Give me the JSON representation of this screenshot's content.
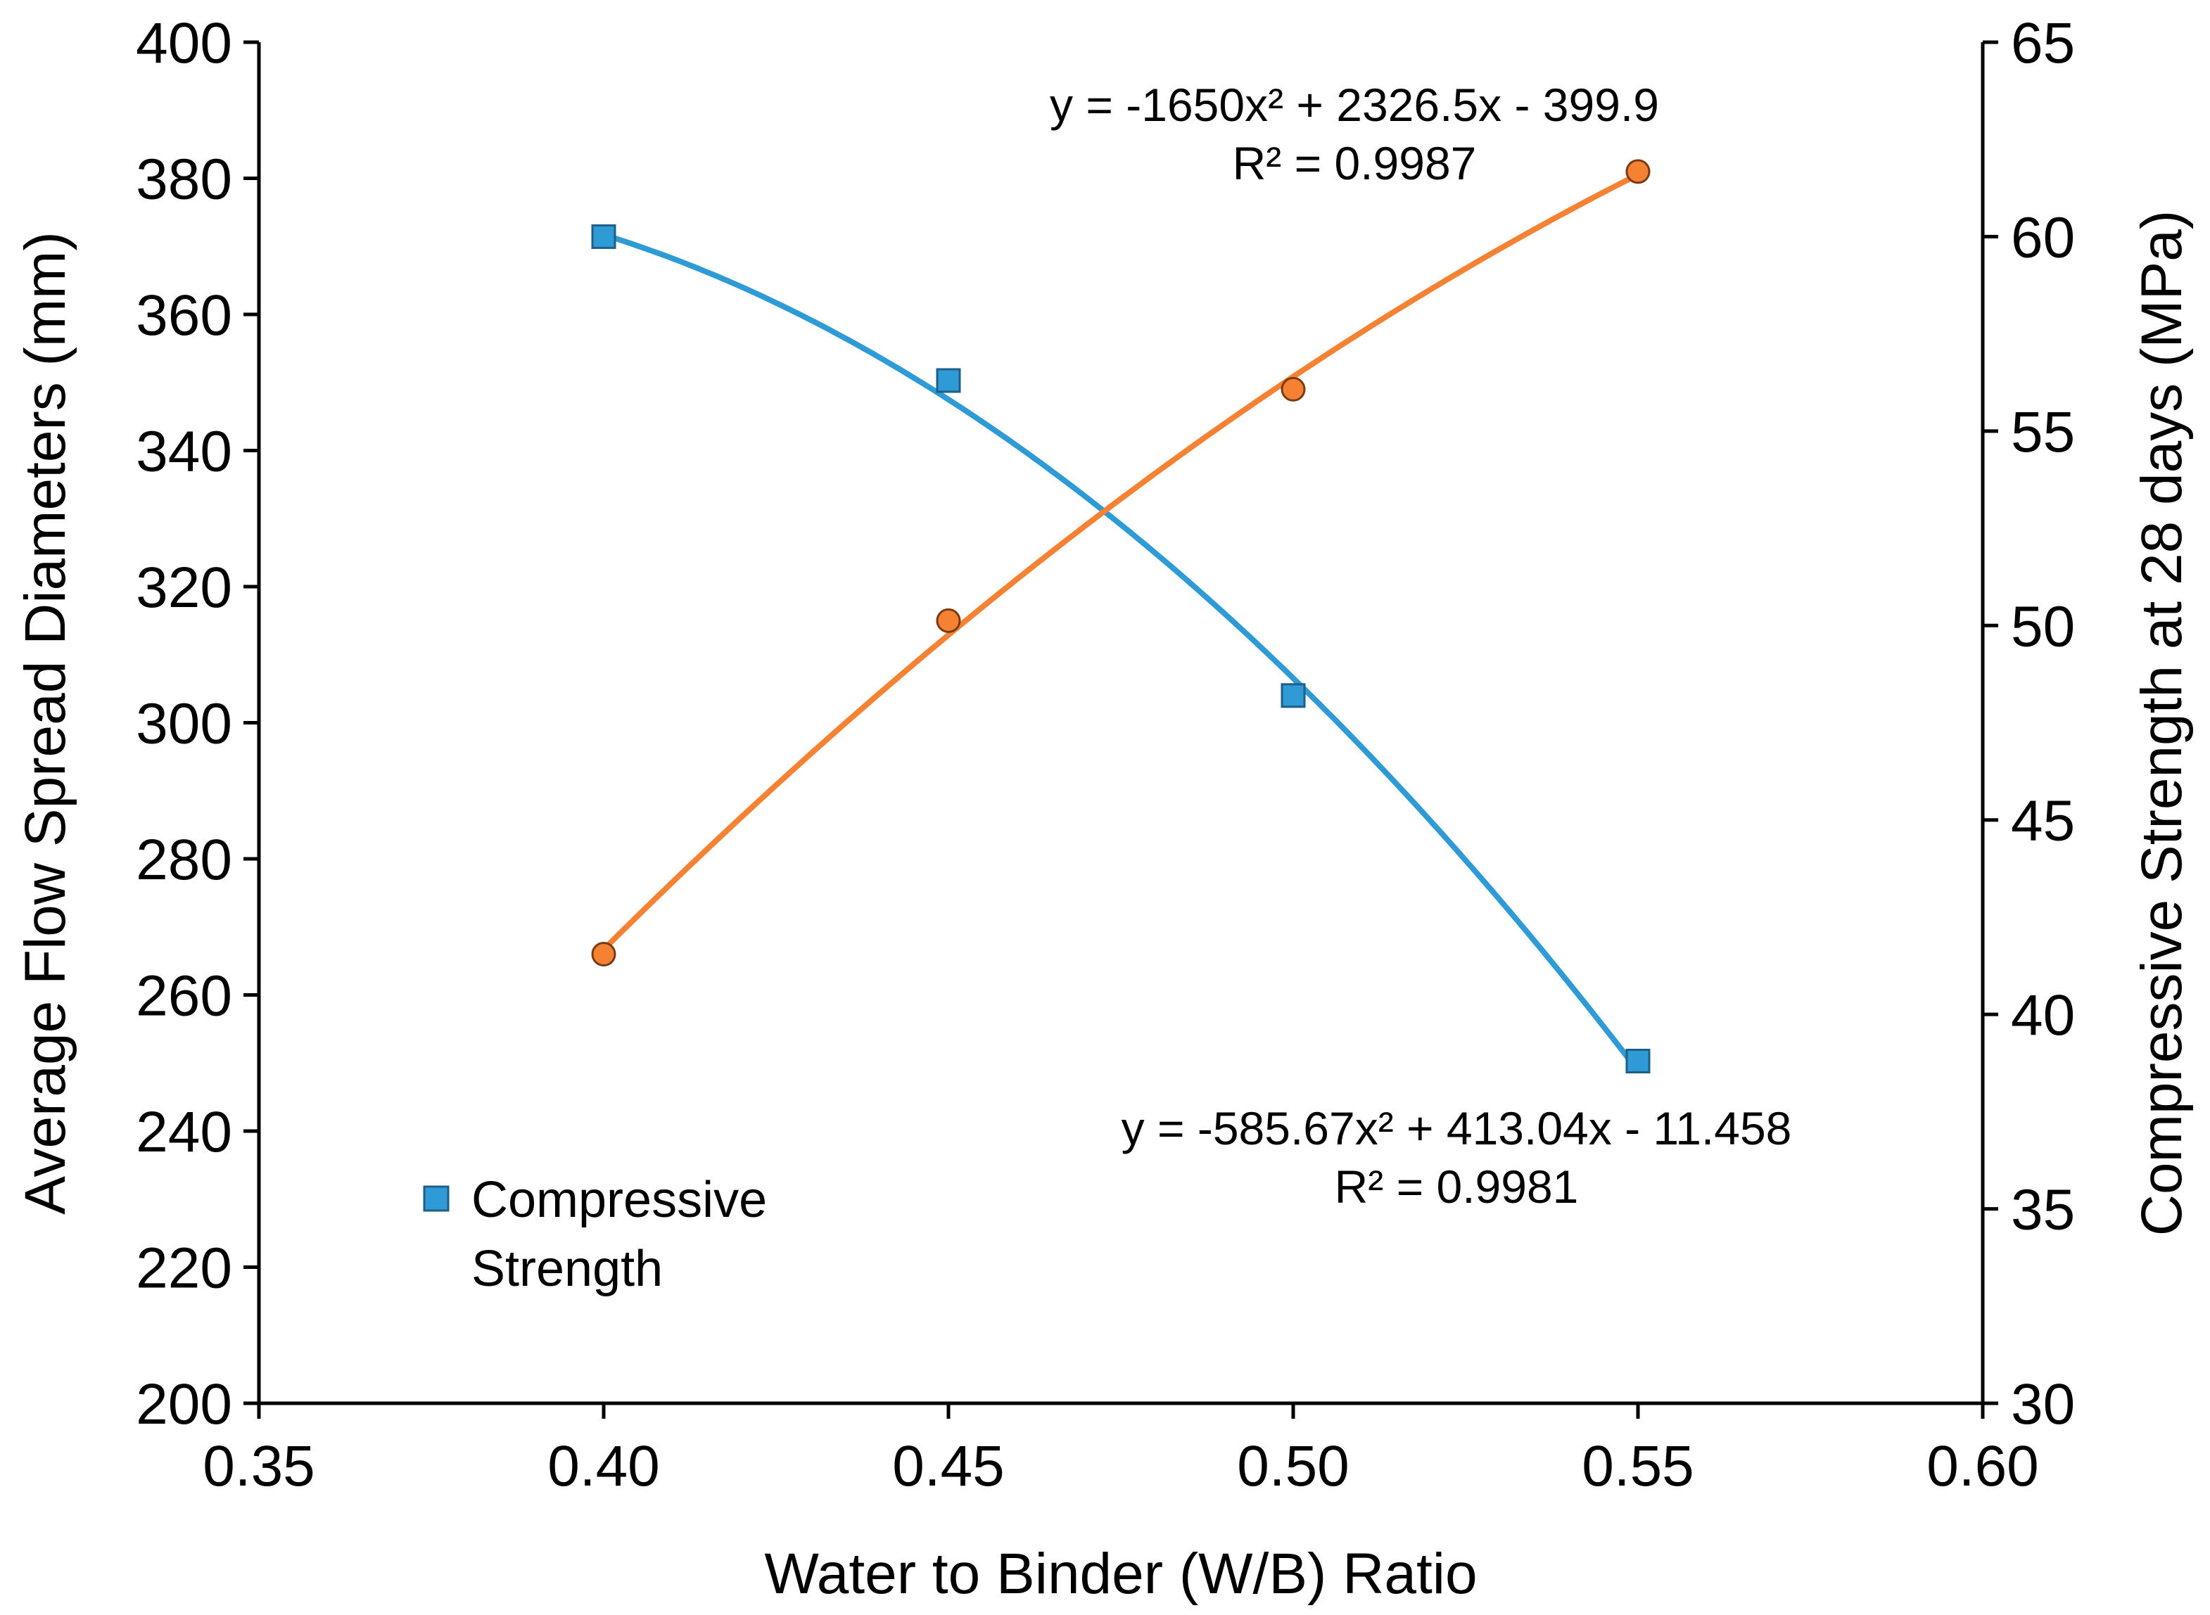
{
  "chart_data": {
    "type": "scatter",
    "xlabel": "Water to Binder (W/B) Ratio",
    "ylabel_left": "Average Flow Spread Diameters (mm)",
    "ylabel_right": "Compressive Strength at 28 days (MPa)",
    "xlim": [
      0.35,
      0.6
    ],
    "ylim_left": [
      200,
      400
    ],
    "ylim_right": [
      30,
      65
    ],
    "x_ticks": [
      "0.35",
      "0.40",
      "0.45",
      "0.50",
      "0.55",
      "0.60"
    ],
    "y_left_ticks": [
      "200",
      "220",
      "240",
      "260",
      "280",
      "300",
      "320",
      "340",
      "360",
      "380",
      "400"
    ],
    "y_right_ticks": [
      "30",
      "35",
      "40",
      "45",
      "50",
      "55",
      "60",
      "65"
    ],
    "grid": false,
    "legend": {
      "position": "bottom-left",
      "label_line1": "Compressive",
      "label_line2": "Strength"
    },
    "series": [
      {
        "name": "Compressive Strength",
        "axis": "right",
        "marker": "square",
        "color": "#2E9BD6",
        "x": [
          0.4,
          0.45,
          0.5,
          0.55
        ],
        "y": [
          60.0,
          56.3,
          48.2,
          38.8
        ],
        "trendline": {
          "type": "polynomial",
          "coefficients": [
            -585.67,
            413.04,
            -11.458
          ],
          "equation": "y = -585.67x² + 413.04x - 11.458",
          "r2": "R² = 0.9981"
        }
      },
      {
        "name": "Average Flow Spread",
        "axis": "left",
        "marker": "circle",
        "color": "#F58232",
        "x": [
          0.4,
          0.45,
          0.5,
          0.55
        ],
        "y": [
          266,
          315,
          349,
          381
        ],
        "trendline": {
          "type": "polynomial",
          "coefficients": [
            -1650,
            2326.5,
            -399.9
          ],
          "equation": "y = -1650x² + 2326.5x - 399.9",
          "r2": "R² = 0.9987"
        }
      }
    ]
  }
}
